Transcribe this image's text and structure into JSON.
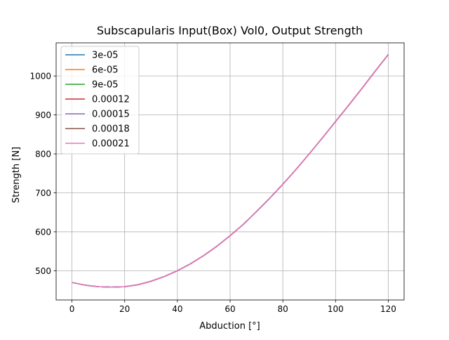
{
  "chart_data": {
    "type": "line",
    "title": "Subscapularis Input(Box) Vol0, Output Strength",
    "xlabel": "Abduction [°]",
    "ylabel": "Strength [N]",
    "xlim": [
      -6,
      126
    ],
    "ylim": [
      425,
      1085
    ],
    "xticks": [
      0,
      20,
      40,
      60,
      80,
      100,
      120
    ],
    "yticks": [
      500,
      600,
      700,
      800,
      900,
      1000
    ],
    "grid": true,
    "legend_position": "upper-left",
    "x": [
      0,
      5,
      10,
      15,
      20,
      25,
      30,
      35,
      40,
      45,
      50,
      55,
      60,
      65,
      70,
      75,
      80,
      85,
      90,
      95,
      100,
      105,
      110,
      115,
      120
    ],
    "series": [
      {
        "name": "3e-05",
        "color": "#1f77b4",
        "values": [
          470,
          463,
          459,
          458,
          459,
          464,
          473,
          485,
          500,
          518,
          539,
          563,
          590,
          619,
          652,
          686,
          722,
          760,
          800,
          841,
          883,
          925,
          968,
          1012,
          1055
        ]
      },
      {
        "name": "6e-05",
        "color": "#ff7f0e",
        "values": [
          470,
          463,
          459,
          458,
          459,
          464,
          473,
          485,
          500,
          518,
          539,
          563,
          590,
          619,
          652,
          686,
          722,
          760,
          800,
          841,
          883,
          925,
          968,
          1012,
          1055
        ]
      },
      {
        "name": "9e-05",
        "color": "#2ca02c",
        "values": [
          470,
          463,
          459,
          458,
          459,
          464,
          473,
          485,
          500,
          518,
          539,
          563,
          590,
          619,
          652,
          686,
          722,
          760,
          800,
          841,
          883,
          925,
          968,
          1012,
          1055
        ]
      },
      {
        "name": "0.00012",
        "color": "#d62728",
        "values": [
          470,
          463,
          459,
          458,
          459,
          464,
          473,
          485,
          500,
          518,
          539,
          563,
          590,
          619,
          652,
          686,
          722,
          760,
          800,
          841,
          883,
          925,
          968,
          1012,
          1055
        ]
      },
      {
        "name": "0.00015",
        "color": "#9467bd",
        "values": [
          470,
          463,
          459,
          458,
          459,
          464,
          473,
          485,
          500,
          518,
          539,
          563,
          590,
          619,
          652,
          686,
          722,
          760,
          800,
          841,
          883,
          925,
          968,
          1012,
          1055
        ]
      },
      {
        "name": "0.00018",
        "color": "#8c564b",
        "values": [
          470,
          463,
          459,
          458,
          459,
          464,
          473,
          485,
          500,
          518,
          539,
          563,
          590,
          619,
          652,
          686,
          722,
          760,
          800,
          841,
          883,
          925,
          968,
          1012,
          1055
        ]
      },
      {
        "name": "0.00021",
        "color": "#e377c2",
        "values": [
          470,
          463,
          459,
          458,
          459,
          464,
          473,
          485,
          500,
          518,
          539,
          563,
          590,
          619,
          652,
          686,
          722,
          760,
          800,
          841,
          883,
          925,
          968,
          1012,
          1055
        ]
      }
    ]
  }
}
